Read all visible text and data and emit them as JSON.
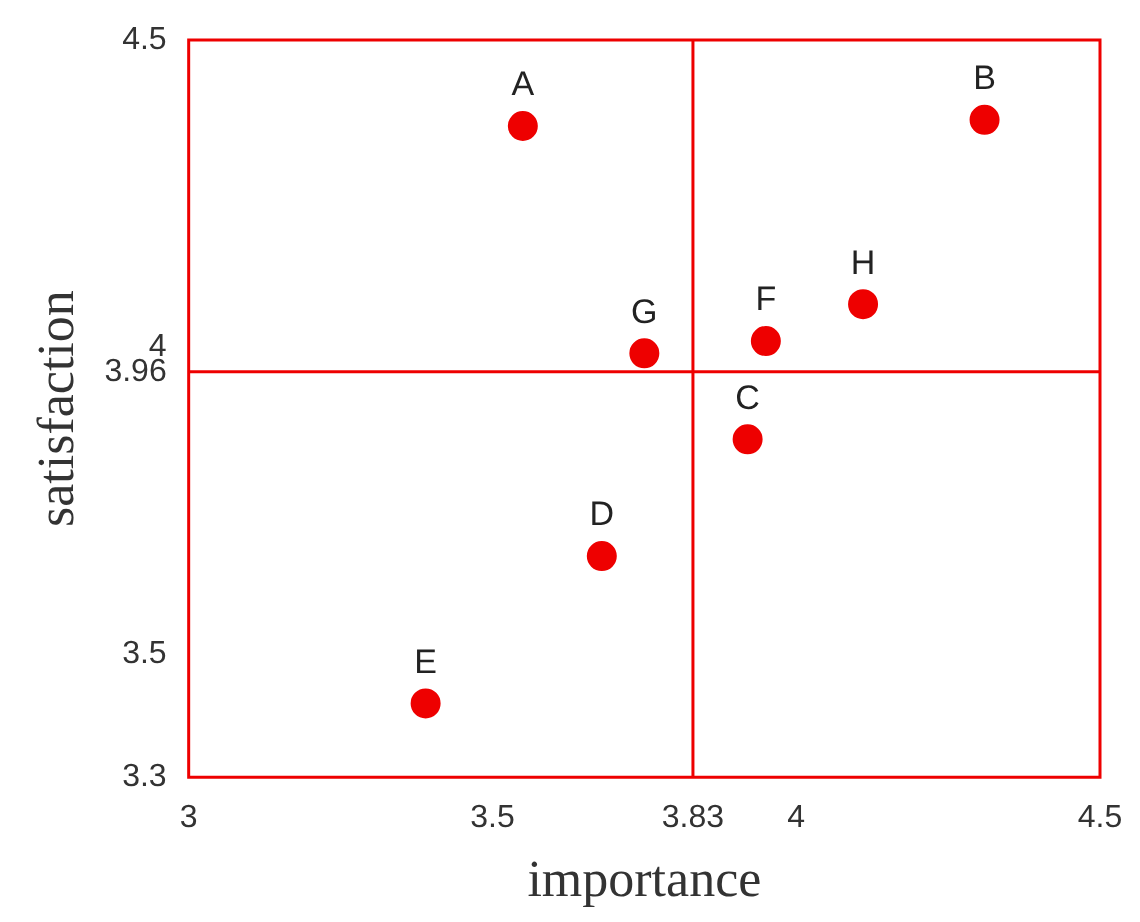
{
  "chart_data": {
    "type": "scatter",
    "xlabel": "importance",
    "ylabel": "satisfaction",
    "x": [
      3.55,
      4.31,
      3.75,
      3.95,
      4.11,
      3.92,
      3.68,
      3.39
    ],
    "series": [
      {
        "color": "#ee0000",
        "values": [
          4.36,
          4.37,
          3.99,
          4.01,
          4.07,
          3.85,
          3.66,
          3.42
        ]
      }
    ],
    "xlim": [
      3,
      4.5
    ],
    "xticks": [
      3,
      3.5,
      3.83,
      4,
      4.5
    ],
    "ylim": [
      3.3,
      4.5
    ],
    "yticks": [
      3.3,
      3.5,
      3.96,
      4,
      4.5
    ],
    "ref_lines": [
      {
        "axis": "x",
        "value": 3.83,
        "color": "#ee0000"
      },
      {
        "axis": "y",
        "value": 3.96,
        "color": "#ee0000"
      }
    ],
    "annotations": [
      {
        "text": "A",
        "x": 3.55,
        "y": 4.36
      },
      {
        "text": "B",
        "x": 4.31,
        "y": 4.37
      },
      {
        "text": "G",
        "x": 3.75,
        "y": 3.99
      },
      {
        "text": "F",
        "x": 3.95,
        "y": 4.01
      },
      {
        "text": "H",
        "x": 4.11,
        "y": 4.07
      },
      {
        "text": "C",
        "x": 3.92,
        "y": 3.85
      },
      {
        "text": "D",
        "x": 3.68,
        "y": 3.66
      },
      {
        "text": "E",
        "x": 3.39,
        "y": 3.42
      }
    ],
    "grid": false,
    "legend": false,
    "marker": "circle"
  }
}
